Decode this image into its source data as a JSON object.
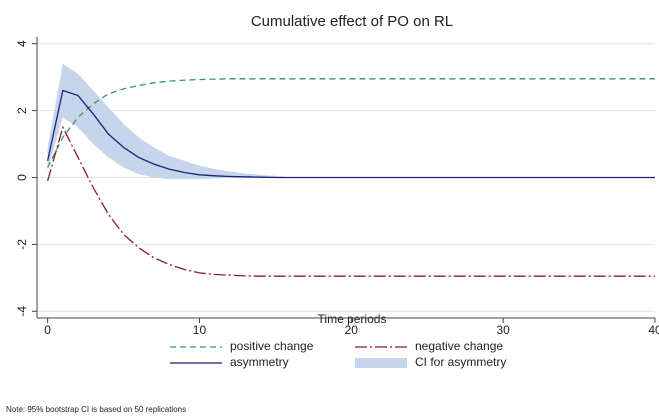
{
  "chart_data": {
    "type": "line",
    "title": "Cumulative effect of PO on RL",
    "xlabel": "Time periods",
    "note": "Note: 95% bootstrap CI is based on 50 replications",
    "xlim": [
      -0.7,
      40
    ],
    "ylim": [
      -4.2,
      4.2
    ],
    "xticks": [
      0,
      10,
      20,
      30,
      40
    ],
    "yticks": [
      -4,
      -2,
      0,
      2,
      4
    ],
    "grid": true,
    "legend": "bottom",
    "x": [
      0,
      1,
      2,
      3,
      4,
      5,
      6,
      7,
      8,
      9,
      10,
      11,
      12,
      13,
      14,
      15,
      16,
      17,
      18,
      19,
      20,
      21,
      22,
      23,
      24,
      25,
      26,
      27,
      28,
      29,
      30,
      31,
      32,
      33,
      34,
      35,
      36,
      37,
      38,
      39,
      40
    ],
    "series": [
      {
        "name": "positive change",
        "color": "#2e9e5b",
        "dash": "6,4",
        "values": [
          0.3,
          1.2,
          1.8,
          2.2,
          2.5,
          2.65,
          2.75,
          2.83,
          2.88,
          2.91,
          2.93,
          2.94,
          2.95,
          2.95,
          2.95,
          2.95,
          2.95,
          2.95,
          2.95,
          2.95,
          2.95,
          2.95,
          2.95,
          2.95,
          2.95,
          2.95,
          2.95,
          2.95,
          2.95,
          2.95,
          2.95,
          2.95,
          2.95,
          2.95,
          2.95,
          2.95,
          2.95,
          2.95,
          2.95,
          2.95,
          2.95
        ]
      },
      {
        "name": "negative change",
        "color": "#8b1a3a",
        "dash": "12,3,2,3",
        "values": [
          -0.1,
          1.5,
          0.6,
          -0.3,
          -1.1,
          -1.7,
          -2.1,
          -2.4,
          -2.6,
          -2.75,
          -2.85,
          -2.9,
          -2.92,
          -2.94,
          -2.95,
          -2.95,
          -2.95,
          -2.95,
          -2.95,
          -2.95,
          -2.95,
          -2.95,
          -2.95,
          -2.95,
          -2.95,
          -2.95,
          -2.95,
          -2.95,
          -2.95,
          -2.95,
          -2.95,
          -2.95,
          -2.95,
          -2.95,
          -2.95,
          -2.95,
          -2.95,
          -2.95,
          -2.95,
          -2.95,
          -2.95
        ]
      },
      {
        "name": "asymmetry",
        "color": "#1a237e",
        "dash": "",
        "values": [
          0.5,
          2.6,
          2.45,
          1.9,
          1.3,
          0.9,
          0.6,
          0.4,
          0.25,
          0.15,
          0.08,
          0.05,
          0.03,
          0.02,
          0.01,
          0,
          0,
          0,
          0,
          0,
          0,
          0,
          0,
          0,
          0,
          0,
          0,
          0,
          0,
          0,
          0,
          0,
          0,
          0,
          0,
          0,
          0,
          0,
          0,
          0,
          0
        ]
      }
    ],
    "band": {
      "name": "CI for asymmetry",
      "color": "#c6d5ec",
      "lower": [
        0.2,
        1.8,
        1.5,
        1.0,
        0.6,
        0.3,
        0.1,
        0,
        -0.05,
        -0.05,
        -0.05,
        -0.03,
        -0.02,
        -0.02,
        -0.01,
        0,
        0,
        0,
        0,
        0,
        0,
        0,
        0,
        0,
        0,
        0,
        0,
        0,
        0,
        0,
        0,
        0,
        0,
        0,
        0,
        0,
        0,
        0,
        0,
        0,
        0
      ],
      "upper": [
        0.9,
        3.4,
        3.1,
        2.6,
        2.1,
        1.6,
        1.2,
        0.9,
        0.65,
        0.5,
        0.35,
        0.25,
        0.18,
        0.12,
        0.08,
        0.05,
        0,
        0,
        0,
        0,
        0,
        0,
        0,
        0,
        0,
        0,
        0,
        0,
        0,
        0,
        0,
        0,
        0,
        0,
        0,
        0,
        0,
        0,
        0,
        0,
        0
      ]
    }
  }
}
